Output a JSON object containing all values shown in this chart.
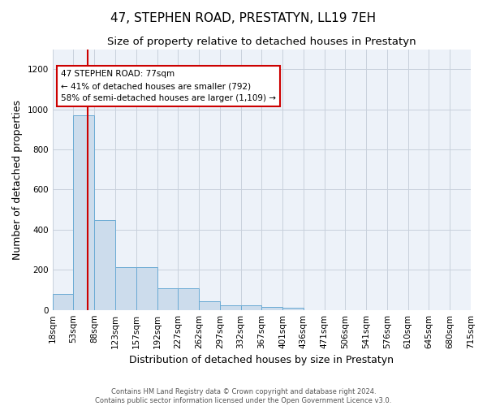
{
  "title": "47, STEPHEN ROAD, PRESTATYN, LL19 7EH",
  "subtitle": "Size of property relative to detached houses in Prestatyn",
  "xlabel": "Distribution of detached houses by size in Prestatyn",
  "ylabel": "Number of detached properties",
  "footnote": "Contains HM Land Registry data © Crown copyright and database right 2024.\nContains public sector information licensed under the Open Government Licence v3.0.",
  "bin_labels": [
    "18sqm",
    "53sqm",
    "88sqm",
    "123sqm",
    "157sqm",
    "192sqm",
    "227sqm",
    "262sqm",
    "297sqm",
    "332sqm",
    "367sqm",
    "401sqm",
    "436sqm",
    "471sqm",
    "506sqm",
    "541sqm",
    "576sqm",
    "610sqm",
    "645sqm",
    "680sqm",
    "715sqm"
  ],
  "bar_values": [
    80,
    970,
    450,
    215,
    215,
    110,
    110,
    45,
    22,
    22,
    15,
    10,
    0,
    0,
    0,
    0,
    0,
    0,
    0,
    0
  ],
  "bar_color": "#ccdcec",
  "bar_edge_color": "#6aaad4",
  "background_color": "#edf2f9",
  "annotation_text": "47 STEPHEN ROAD: 77sqm\n← 41% of detached houses are smaller (792)\n58% of semi-detached houses are larger (1,109) →",
  "vline_x": 1.69,
  "vline_color": "#cc0000",
  "annotation_box_color": "#ffffff",
  "annotation_box_edge_color": "#cc0000",
  "ylim": [
    0,
    1300
  ],
  "yticks": [
    0,
    200,
    400,
    600,
    800,
    1000,
    1200
  ],
  "title_fontsize": 11,
  "subtitle_fontsize": 9.5,
  "tick_fontsize": 7.5,
  "ylabel_fontsize": 9,
  "xlabel_fontsize": 9,
  "annotation_fontsize": 7.5
}
